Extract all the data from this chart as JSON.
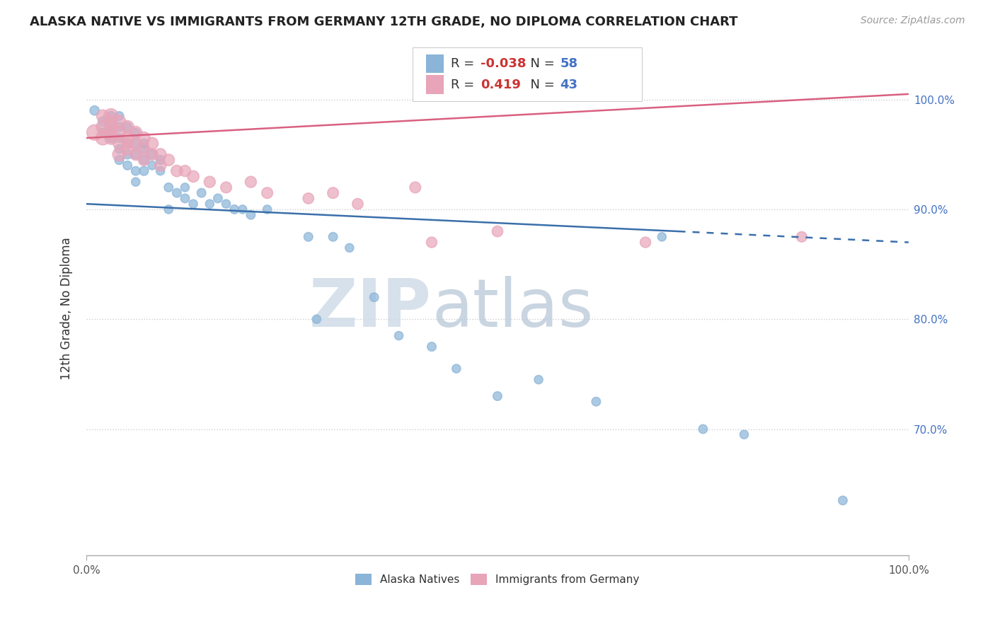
{
  "title": "ALASKA NATIVE VS IMMIGRANTS FROM GERMANY 12TH GRADE, NO DIPLOMA CORRELATION CHART",
  "source": "Source: ZipAtlas.com",
  "ylabel": "12th Grade, No Diploma",
  "xlim": [
    0.0,
    1.0
  ],
  "ylim": [
    0.585,
    1.035
  ],
  "blue_R": "-0.038",
  "blue_N": "58",
  "pink_R": "0.419",
  "pink_N": "43",
  "blue_color": "#8ab4d8",
  "pink_color": "#e8a4b8",
  "blue_line_color": "#3a6faa",
  "pink_line_color": "#d96080",
  "watermark_zip": "ZIP",
  "watermark_atlas": "atlas",
  "yticks": [
    0.7,
    0.8,
    0.9,
    1.0
  ],
  "ytick_labels": [
    "70.0%",
    "80.0%",
    "90.0%",
    "100.0%"
  ],
  "blue_line_start_x": 0.0,
  "blue_line_start_y": 0.905,
  "blue_line_solid_end_x": 0.72,
  "blue_line_solid_end_y": 0.88,
  "blue_line_dashed_end_x": 1.0,
  "blue_line_dashed_end_y": 0.87,
  "pink_line_start_x": 0.0,
  "pink_line_start_y": 0.965,
  "pink_line_end_x": 1.0,
  "pink_line_end_y": 1.005,
  "blue_scatter_x": [
    0.01,
    0.02,
    0.02,
    0.03,
    0.03,
    0.03,
    0.03,
    0.04,
    0.04,
    0.04,
    0.04,
    0.04,
    0.05,
    0.05,
    0.05,
    0.05,
    0.06,
    0.06,
    0.06,
    0.06,
    0.06,
    0.07,
    0.07,
    0.07,
    0.07,
    0.08,
    0.08,
    0.09,
    0.09,
    0.1,
    0.1,
    0.11,
    0.12,
    0.12,
    0.13,
    0.14,
    0.15,
    0.16,
    0.17,
    0.18,
    0.19,
    0.2,
    0.22,
    0.27,
    0.28,
    0.3,
    0.32,
    0.35,
    0.38,
    0.42,
    0.45,
    0.5,
    0.55,
    0.62,
    0.7,
    0.75,
    0.8,
    0.92
  ],
  "blue_scatter_y": [
    0.99,
    0.97,
    0.98,
    0.965,
    0.975,
    0.985,
    0.97,
    0.975,
    0.985,
    0.965,
    0.955,
    0.945,
    0.975,
    0.96,
    0.95,
    0.94,
    0.97,
    0.96,
    0.95,
    0.935,
    0.925,
    0.96,
    0.955,
    0.945,
    0.935,
    0.95,
    0.94,
    0.945,
    0.935,
    0.92,
    0.9,
    0.915,
    0.92,
    0.91,
    0.905,
    0.915,
    0.905,
    0.91,
    0.905,
    0.9,
    0.9,
    0.895,
    0.9,
    0.875,
    0.8,
    0.875,
    0.865,
    0.82,
    0.785,
    0.775,
    0.755,
    0.73,
    0.745,
    0.725,
    0.875,
    0.7,
    0.695,
    0.635
  ],
  "pink_scatter_x": [
    0.01,
    0.02,
    0.02,
    0.02,
    0.03,
    0.03,
    0.03,
    0.03,
    0.03,
    0.04,
    0.04,
    0.04,
    0.04,
    0.05,
    0.05,
    0.05,
    0.05,
    0.06,
    0.06,
    0.06,
    0.07,
    0.07,
    0.07,
    0.08,
    0.08,
    0.09,
    0.09,
    0.1,
    0.11,
    0.12,
    0.13,
    0.15,
    0.17,
    0.2,
    0.22,
    0.27,
    0.3,
    0.33,
    0.4,
    0.42,
    0.5,
    0.68,
    0.87
  ],
  "pink_scatter_y": [
    0.97,
    0.975,
    0.985,
    0.965,
    0.985,
    0.975,
    0.965,
    0.98,
    0.97,
    0.98,
    0.97,
    0.96,
    0.95,
    0.975,
    0.965,
    0.96,
    0.955,
    0.97,
    0.96,
    0.95,
    0.965,
    0.955,
    0.945,
    0.96,
    0.95,
    0.95,
    0.94,
    0.945,
    0.935,
    0.935,
    0.93,
    0.925,
    0.92,
    0.925,
    0.915,
    0.91,
    0.915,
    0.905,
    0.92,
    0.87,
    0.88,
    0.87,
    0.875
  ],
  "blue_sizes": [
    90,
    80,
    85,
    90,
    80,
    85,
    75,
    85,
    80,
    75,
    80,
    85,
    80,
    75,
    85,
    80,
    75,
    80,
    85,
    80,
    75,
    80,
    75,
    80,
    85,
    80,
    75,
    80,
    75,
    80,
    75,
    80,
    75,
    80,
    75,
    80,
    75,
    80,
    75,
    80,
    75,
    80,
    75,
    80,
    75,
    80,
    75,
    80,
    75,
    80,
    75,
    80,
    75,
    80,
    75,
    80,
    75,
    80
  ],
  "pink_sizes": [
    250,
    180,
    160,
    200,
    220,
    190,
    170,
    160,
    185,
    175,
    165,
    155,
    180,
    170,
    160,
    150,
    165,
    160,
    150,
    140,
    155,
    145,
    135,
    150,
    140,
    145,
    135,
    140,
    135,
    130,
    135,
    130,
    125,
    130,
    125,
    120,
    125,
    120,
    125,
    115,
    120,
    115,
    110
  ]
}
